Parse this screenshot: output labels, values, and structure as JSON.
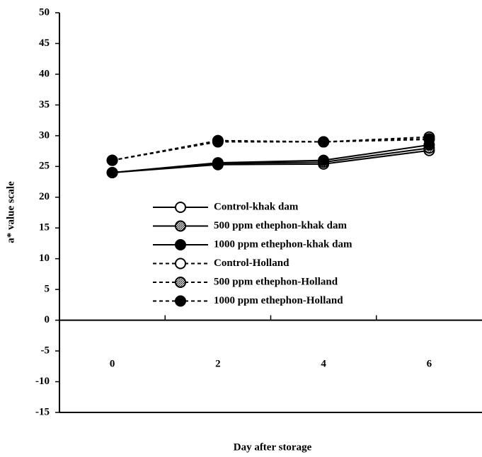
{
  "chart_data": {
    "type": "line",
    "x_label": "Day after storage",
    "y_label": "a* value scale",
    "categories": [
      "0",
      "2",
      "4",
      "6"
    ],
    "ylim": [
      -15,
      50
    ],
    "yticks": [
      -15,
      -10,
      -5,
      0,
      5,
      10,
      15,
      20,
      25,
      30,
      35,
      40,
      45,
      50
    ],
    "series": [
      {
        "name": "Control-khak dam",
        "color": "#000000",
        "line_style": "solid",
        "marker": "open",
        "values": [
          24,
          25.3,
          25.4,
          27.6
        ]
      },
      {
        "name": "500 ppm ethephon-khak dam",
        "color": "#000000",
        "line_style": "solid",
        "marker": "hatched",
        "values": [
          24,
          25.5,
          25.7,
          28
        ]
      },
      {
        "name": "1000 ppm ethephon-khak dam",
        "color": "#000000",
        "line_style": "solid",
        "marker": "filled",
        "values": [
          24,
          25.6,
          26,
          28.5
        ]
      },
      {
        "name": "Control-Holland",
        "color": "#000000",
        "line_style": "dashed",
        "marker": "open",
        "values": [
          26,
          29,
          29,
          29.8
        ]
      },
      {
        "name": "500 ppm ethephon-Holland",
        "color": "#000000",
        "line_style": "dashed",
        "marker": "hatched",
        "values": [
          26,
          29.2,
          29,
          29.5
        ]
      },
      {
        "name": "1000 ppm ethephon-Holland",
        "color": "#000000",
        "line_style": "dashed",
        "marker": "filled",
        "values": [
          26,
          29.2,
          29,
          29.4
        ]
      }
    ]
  }
}
